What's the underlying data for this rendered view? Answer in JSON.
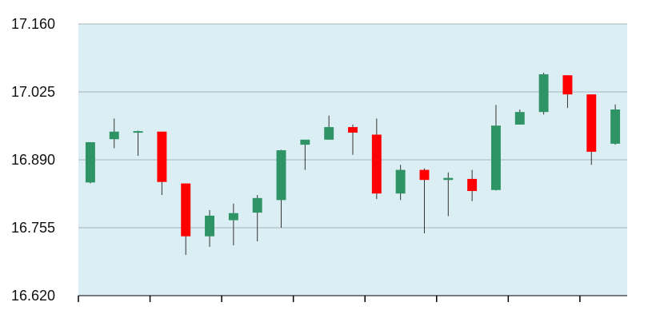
{
  "chart_data": {
    "type": "candlestick",
    "title": "",
    "xlabel": "",
    "ylabel": "",
    "ylim": [
      16.62,
      17.16
    ],
    "y_ticks": [
      "17.160",
      "17.025",
      "16.890",
      "16.755",
      "16.620"
    ],
    "grid": true,
    "legend": "none",
    "colors": {
      "up": "#2e9466",
      "down": "#ff0000",
      "wick": "#333333",
      "plot_bg": "#dbeef3",
      "grid": "#a9b4bb",
      "axis": "#000000"
    },
    "candles": [
      {
        "open": 16.845,
        "high": 16.925,
        "low": 16.843,
        "close": 16.925
      },
      {
        "open": 16.931,
        "high": 16.972,
        "low": 16.913,
        "close": 16.946
      },
      {
        "open": 16.945,
        "high": 16.948,
        "low": 16.898,
        "close": 16.947
      },
      {
        "open": 16.946,
        "high": 16.946,
        "low": 16.82,
        "close": 16.846
      },
      {
        "open": 16.843,
        "high": 16.843,
        "low": 16.701,
        "close": 16.738
      },
      {
        "open": 16.738,
        "high": 16.79,
        "low": 16.717,
        "close": 16.779
      },
      {
        "open": 16.77,
        "high": 16.803,
        "low": 16.72,
        "close": 16.784
      },
      {
        "open": 16.785,
        "high": 16.82,
        "low": 16.728,
        "close": 16.814
      },
      {
        "open": 16.81,
        "high": 16.91,
        "low": 16.755,
        "close": 16.909
      },
      {
        "open": 16.92,
        "high": 16.93,
        "low": 16.87,
        "close": 16.93
      },
      {
        "open": 16.93,
        "high": 16.978,
        "low": 16.93,
        "close": 16.955
      },
      {
        "open": 16.955,
        "high": 16.96,
        "low": 16.9,
        "close": 16.944
      },
      {
        "open": 16.94,
        "high": 16.972,
        "low": 16.812,
        "close": 16.823
      },
      {
        "open": 16.823,
        "high": 16.88,
        "low": 16.81,
        "close": 16.87
      },
      {
        "open": 16.87,
        "high": 16.873,
        "low": 16.744,
        "close": 16.85
      },
      {
        "open": 16.85,
        "high": 16.865,
        "low": 16.778,
        "close": 16.854
      },
      {
        "open": 16.852,
        "high": 16.87,
        "low": 16.808,
        "close": 16.828
      },
      {
        "open": 16.83,
        "high": 16.999,
        "low": 16.829,
        "close": 16.958
      },
      {
        "open": 16.96,
        "high": 16.99,
        "low": 16.96,
        "close": 16.985
      },
      {
        "open": 16.985,
        "high": 17.063,
        "low": 16.98,
        "close": 17.06
      },
      {
        "open": 17.058,
        "high": 17.058,
        "low": 16.993,
        "close": 17.02
      },
      {
        "open": 17.02,
        "high": 17.02,
        "low": 16.88,
        "close": 16.906
      },
      {
        "open": 16.922,
        "high": 17.0,
        "low": 16.92,
        "close": 16.99
      }
    ]
  }
}
